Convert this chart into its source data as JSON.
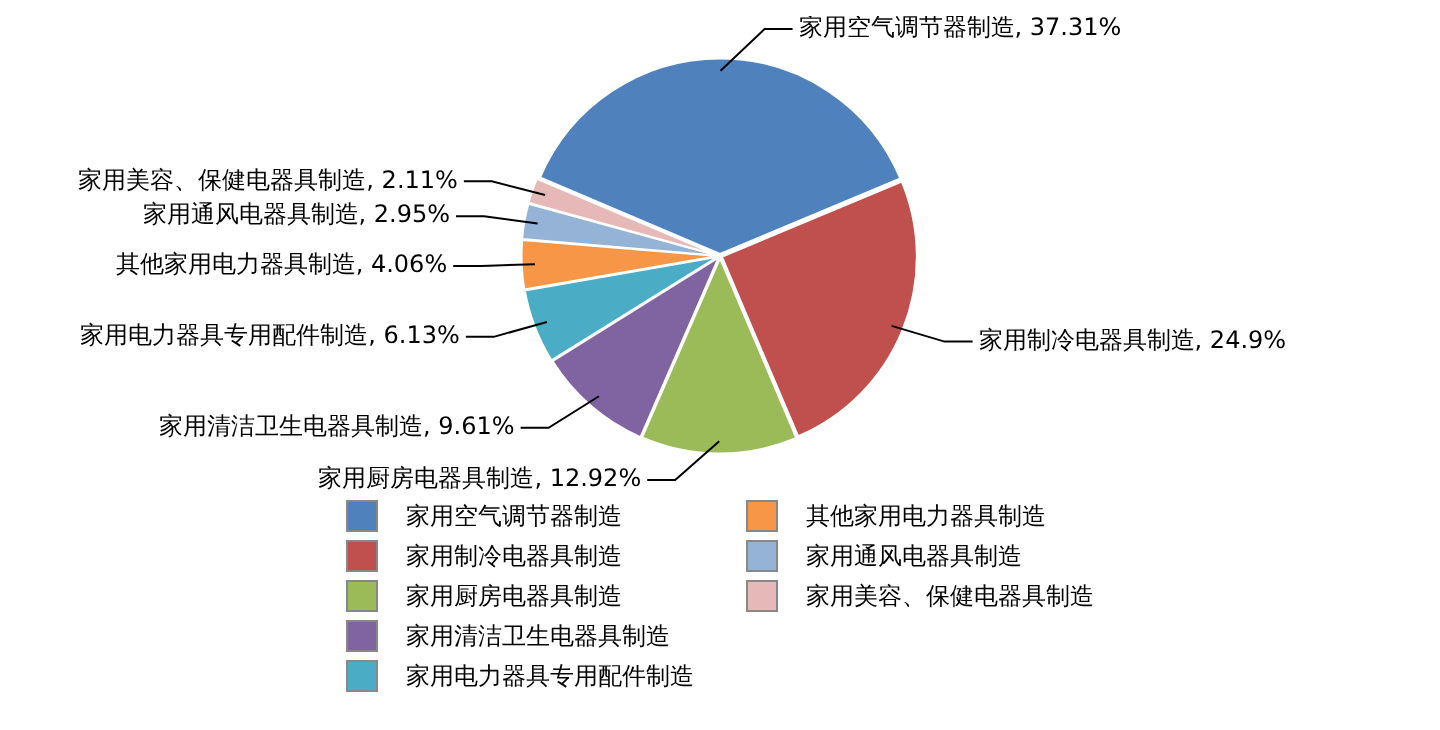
{
  "chart_data": {
    "type": "pie",
    "categories": [
      "家用空气调节器制造",
      "家用制冷电器具制造",
      "家用厨房电器具制造",
      "家用清洁卫生电器具制造",
      "家用电力器具专用配件制造",
      "其他家用电力器具制造",
      "家用通风电器具制造",
      "家用美容、保健电器具制造"
    ],
    "values": [
      37.31,
      24.9,
      12.92,
      9.61,
      6.13,
      4.06,
      2.95,
      2.11
    ],
    "value_labels": [
      ", 37.31%",
      ", 24.9%",
      ", 12.92%",
      ", 9.61%",
      ", 6.13%",
      ", 4.06%",
      ", 2.95%",
      ", 2.11%"
    ],
    "colors": [
      "#4f81bd",
      "#c0504d",
      "#9bbb59",
      "#8064a2",
      "#4bacc6",
      "#f79646",
      "#95b3d7",
      "#e6b9b8"
    ],
    "legend": "bottom"
  }
}
